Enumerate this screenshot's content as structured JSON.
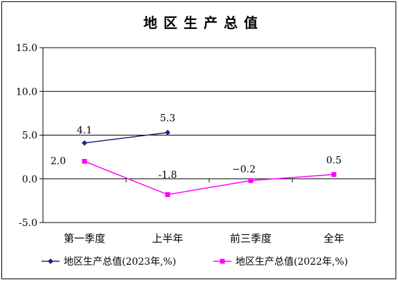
{
  "chart_data": {
    "type": "line",
    "title": "地区生产总值",
    "categories": [
      "第一季度",
      "上半年",
      "前三季度",
      "全年"
    ],
    "ylim": [
      -5.0,
      15.0
    ],
    "yticks": [
      "15.0",
      "10.0",
      "5.0",
      "0.0",
      "-5.0"
    ],
    "grid": true,
    "legend_position": "bottom",
    "series": [
      {
        "name": "地区生产总值(2023年,%)",
        "values": [
          4.1,
          5.3,
          null,
          null
        ],
        "labels": [
          "4.1",
          "5.3",
          "",
          ""
        ],
        "color": "#1a237e",
        "marker": "diamond"
      },
      {
        "name": "地区生产总值(2022年,%)",
        "values": [
          2.0,
          -1.8,
          -0.2,
          0.5
        ],
        "labels": [
          "2.0",
          "-1.8",
          "−0.2",
          "0.5"
        ],
        "color": "#ff00ff",
        "marker": "square"
      }
    ]
  }
}
